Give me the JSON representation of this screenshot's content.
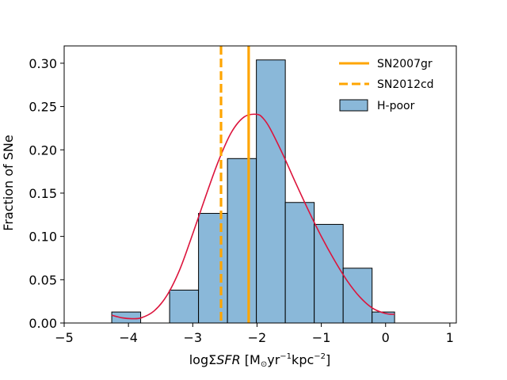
{
  "chart_data": {
    "type": "histogram",
    "title": "",
    "xlabel_parts": {
      "prefix": "logΣ",
      "italic": "SFR",
      "rest": " [M",
      "sub": "⊙",
      "mid": "yr",
      "sup1": "−1",
      "mid2": "kpc",
      "sup2": "−2",
      "end": "]"
    },
    "ylabel": "Fraction of SNe",
    "xlim": [
      -5,
      1.1
    ],
    "ylim": [
      0,
      0.32
    ],
    "xticks": [
      -5,
      -4,
      -3,
      -2,
      -1,
      0,
      1
    ],
    "xtick_labels": [
      "−5",
      "−4",
      "−3",
      "−2",
      "−1",
      "0",
      "1"
    ],
    "yticks": [
      0.0,
      0.05,
      0.1,
      0.15,
      0.2,
      0.25,
      0.3
    ],
    "ytick_labels": [
      "0.00",
      "0.05",
      "0.10",
      "0.15",
      "0.20",
      "0.25",
      "0.30"
    ],
    "bins": [
      {
        "x0": -4.26,
        "x1": -3.81,
        "value": 0.0127
      },
      {
        "x0": -3.81,
        "x1": -3.36,
        "value": 0.0
      },
      {
        "x0": -3.36,
        "x1": -2.91,
        "value": 0.038
      },
      {
        "x0": -2.91,
        "x1": -2.46,
        "value": 0.1266
      },
      {
        "x0": -2.46,
        "x1": -2.01,
        "value": 0.1899
      },
      {
        "x0": -2.01,
        "x1": -1.56,
        "value": 0.3038
      },
      {
        "x0": -1.56,
        "x1": -1.11,
        "value": 0.1392
      },
      {
        "x0": -1.11,
        "x1": -0.66,
        "value": 0.1139
      },
      {
        "x0": -0.66,
        "x1": -0.21,
        "value": 0.0633
      },
      {
        "x0": -0.21,
        "x1": 0.14,
        "value": 0.0127
      }
    ],
    "kde": {
      "name": "KDE",
      "x": [
        -4.26,
        -4.1,
        -3.95,
        -3.8,
        -3.6,
        -3.4,
        -3.2,
        -3.0,
        -2.8,
        -2.6,
        -2.4,
        -2.2,
        -2.0,
        -1.9,
        -1.8,
        -1.6,
        -1.4,
        -1.2,
        -1.0,
        -0.8,
        -0.6,
        -0.4,
        -0.2,
        0.0,
        0.14
      ],
      "y": [
        0.009,
        0.006,
        0.005,
        0.006,
        0.014,
        0.032,
        0.062,
        0.103,
        0.146,
        0.187,
        0.22,
        0.238,
        0.241,
        0.236,
        0.225,
        0.195,
        0.162,
        0.13,
        0.1,
        0.073,
        0.049,
        0.03,
        0.017,
        0.011,
        0.01
      ]
    },
    "vlines": [
      {
        "name": "SN2007gr",
        "x": -2.13,
        "style": "solid"
      },
      {
        "name": "SN2012cd",
        "x": -2.56,
        "style": "dashed"
      }
    ],
    "legend": {
      "position": "top-right",
      "entries": [
        {
          "label": "SN2007gr",
          "kind": "solid-line"
        },
        {
          "label": "SN2012cd",
          "kind": "dashed-line"
        },
        {
          "label": "H-poor",
          "kind": "patch"
        }
      ]
    },
    "colors": {
      "bar_fill": "#8ab8d9",
      "bar_edge": "#000000",
      "kde": "#dc143c",
      "vline": "#ffa500"
    }
  }
}
